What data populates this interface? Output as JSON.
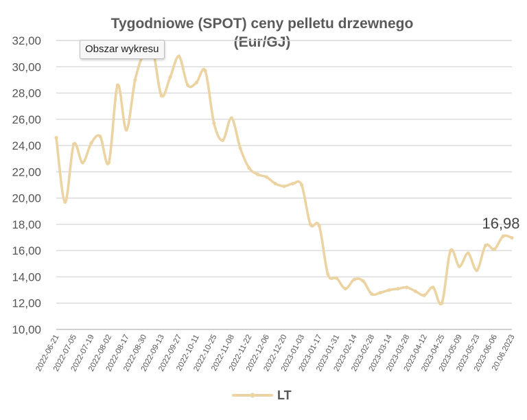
{
  "tooltip": {
    "text": "Obszar wykresu"
  },
  "colors": {
    "series": "#ecd3a2",
    "grid": "#d9d9d9",
    "text": "#555555"
  },
  "chart_data": {
    "type": "line",
    "title_line1": "Tygodniowe (SPOT) ceny pelletu drzewnego",
    "title_line2": "(Eur/GJ)",
    "ylim": [
      10,
      32
    ],
    "y_ticks": [
      "10,00",
      "12,00",
      "14,00",
      "16,00",
      "18,00",
      "20,00",
      "22,00",
      "24,00",
      "26,00",
      "28,00",
      "30,00",
      "32,00"
    ],
    "x_tick_labels": [
      "2022-06-21",
      "2022-07-05",
      "2022-07-19",
      "2022-08-02",
      "2022-08-17",
      "2022-08-30",
      "2022-09-13",
      "2022-09-27",
      "2022-10-11",
      "2022-10-25",
      "2022-11-08",
      "2022-11-22",
      "2022-12-06",
      "2022-12-20",
      "2023-01-03",
      "2023-01-17",
      "2023-01-31",
      "2023-02-14",
      "2023-02-28",
      "2023-03-14",
      "2023-03-28",
      "2023-04-12",
      "2023-04-25",
      "2023-05-09",
      "2023-05-23",
      "2023-06-06",
      "20.06.2023"
    ],
    "grid": true,
    "legend_position": "bottom",
    "series": [
      {
        "name": "LT",
        "values": [
          24.6,
          19.7,
          24.1,
          22.7,
          24.2,
          24.7,
          22.7,
          28.6,
          25.2,
          29.0,
          31.0,
          31.3,
          27.8,
          29.2,
          30.8,
          28.6,
          28.8,
          29.7,
          25.7,
          24.4,
          26.1,
          23.8,
          22.3,
          21.8,
          21.6,
          21.1,
          20.9,
          21.1,
          21.0,
          18.0,
          17.9,
          14.2,
          13.9,
          13.1,
          13.8,
          13.7,
          12.7,
          12.8,
          13.0,
          13.1,
          13.2,
          12.9,
          12.6,
          13.2,
          12.0,
          16.0,
          14.8,
          15.8,
          14.5,
          16.4,
          16.1,
          17.1,
          16.98
        ]
      }
    ],
    "data_labels": [
      {
        "text": "16,98"
      }
    ]
  }
}
